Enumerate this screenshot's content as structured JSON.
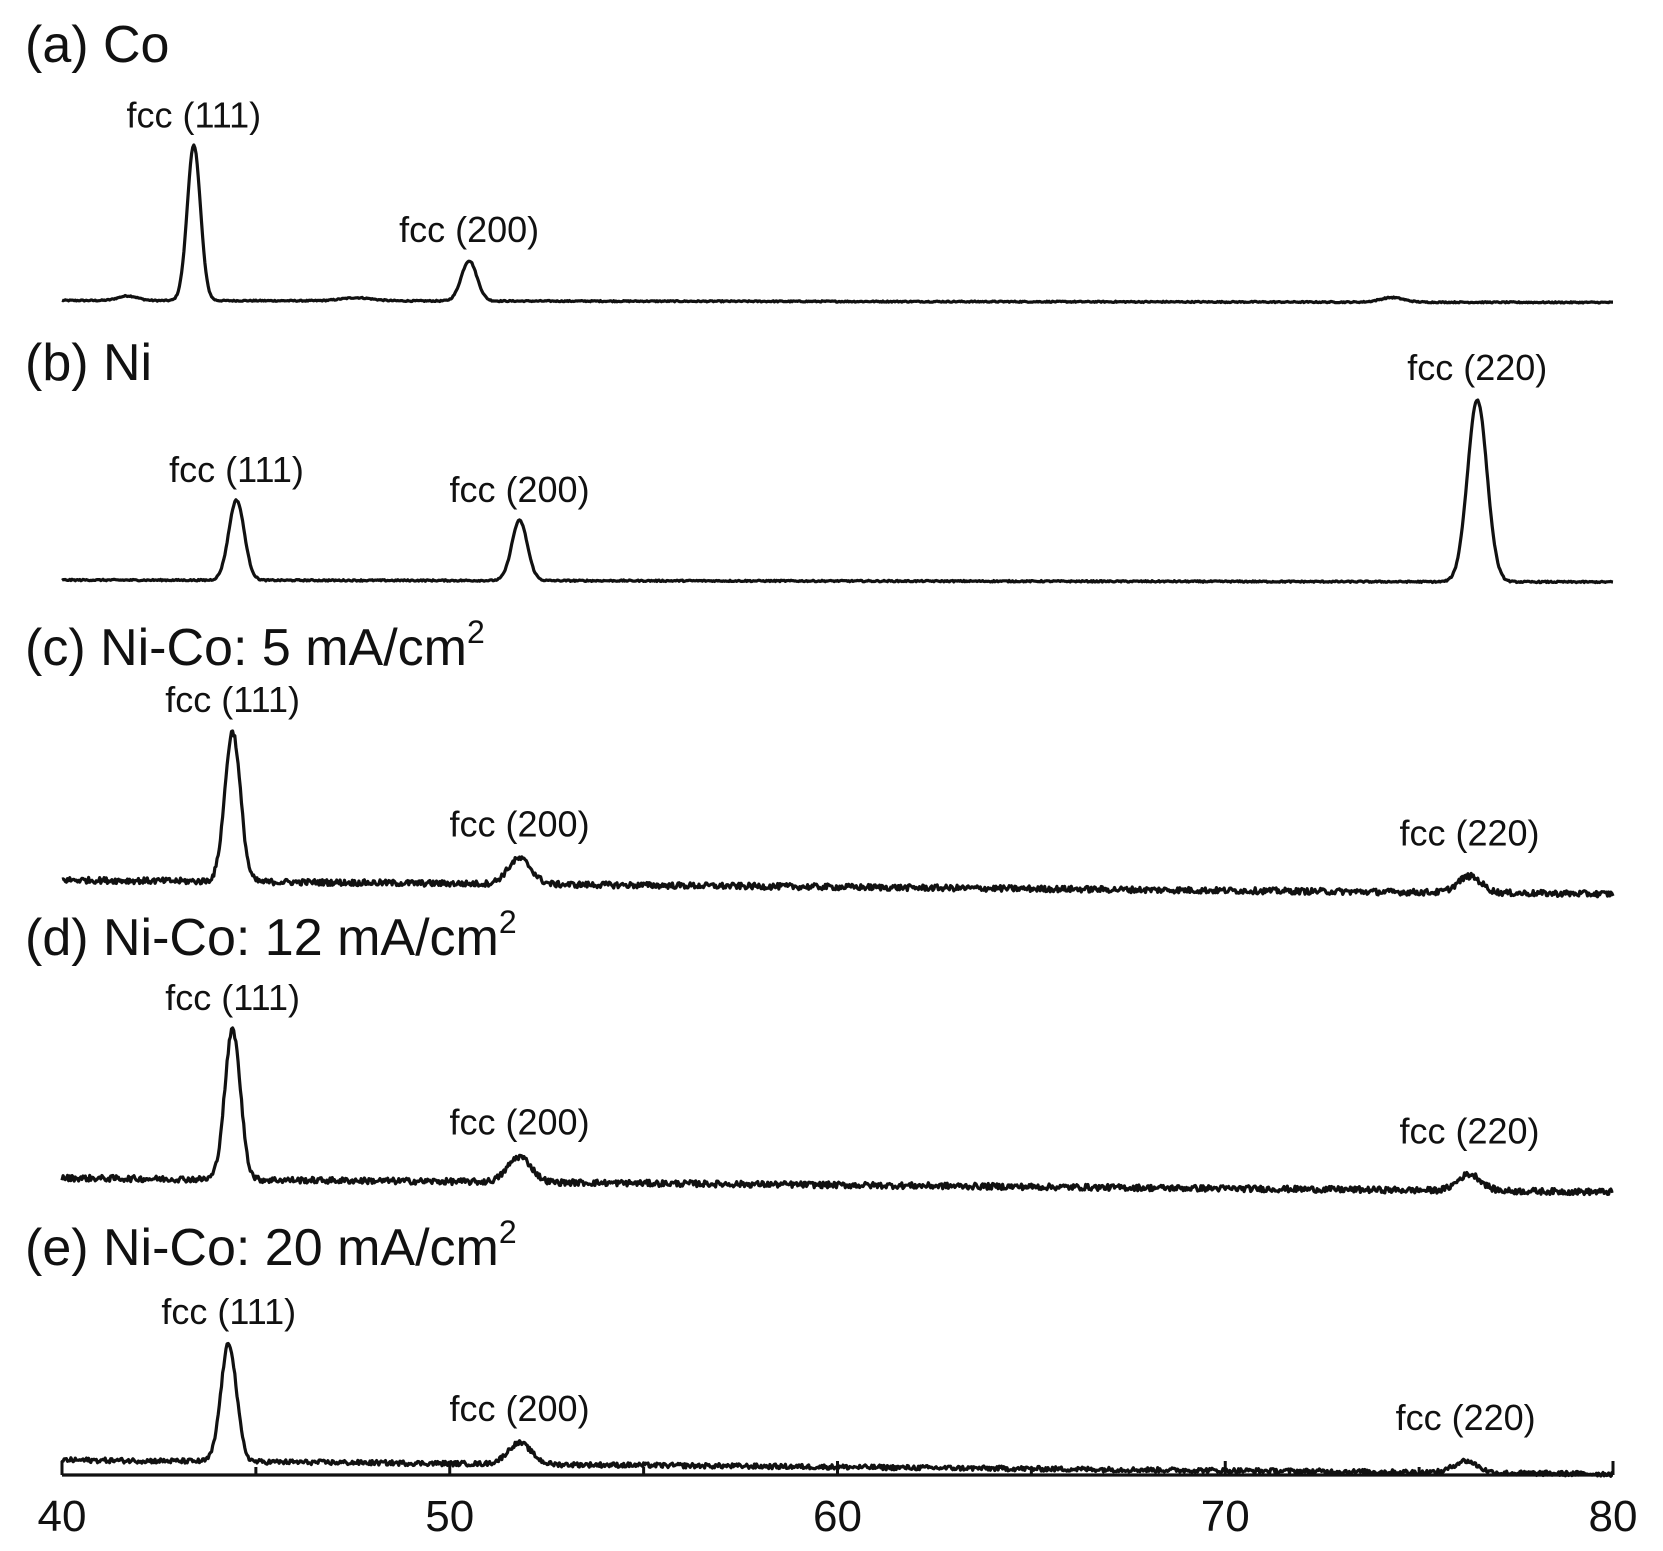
{
  "chart_data": {
    "type": "line",
    "xlim": [
      40,
      80
    ],
    "x_ticks": [
      40,
      50,
      60,
      70,
      80
    ],
    "x_tick_labels": [
      "40",
      "50",
      "60",
      "70",
      "80"
    ],
    "xlabel": "",
    "ylabel": "",
    "grid": false,
    "line_color": "#111111",
    "panels": [
      {
        "title": "(a) Co",
        "title_sup": "",
        "noise": 0.004,
        "baseline": 0.01,
        "peaks": [
          {
            "x": 41.7,
            "height": 0.03,
            "width": 0.25
          },
          {
            "x": 43.4,
            "height": 1.0,
            "width": 0.17
          },
          {
            "x": 47.6,
            "height": 0.02,
            "width": 0.4
          },
          {
            "x": 50.5,
            "height": 0.26,
            "width": 0.2
          },
          {
            "x": 74.3,
            "height": 0.03,
            "width": 0.3
          }
        ],
        "labels": [
          {
            "text": "fcc (111)",
            "x": 43.4
          },
          {
            "text": "fcc (200)",
            "x": 50.5
          }
        ]
      },
      {
        "title": "(b) Ni",
        "title_sup": "",
        "noise": 0.004,
        "baseline": 0.0,
        "peaks": [
          {
            "x": 44.5,
            "height": 0.44,
            "width": 0.2
          },
          {
            "x": 51.8,
            "height": 0.33,
            "width": 0.2
          },
          {
            "x": 76.5,
            "height": 1.0,
            "width": 0.25
          }
        ],
        "labels": [
          {
            "text": "fcc (111)",
            "x": 44.5
          },
          {
            "text": "fcc (200)",
            "x": 51.8
          },
          {
            "text": "fcc (220)",
            "x": 76.5
          }
        ]
      },
      {
        "title": "(c) Ni-Co: 5 mA/cm",
        "title_sup": "2",
        "noise": 0.02,
        "baseline": 0.0,
        "peaks": [
          {
            "x": 44.4,
            "height": 1.0,
            "width": 0.2
          },
          {
            "x": 51.8,
            "height": 0.17,
            "width": 0.3
          },
          {
            "x": 76.3,
            "height": 0.11,
            "width": 0.3
          }
        ],
        "labels": [
          {
            "text": "fcc (111)",
            "x": 44.4
          },
          {
            "text": "fcc (200)",
            "x": 51.8
          },
          {
            "text": "fcc (220)",
            "x": 76.3
          }
        ]
      },
      {
        "title": "(d) Ni-Co: 12 mA/cm",
        "title_sup": "2",
        "noise": 0.02,
        "baseline": 0.0,
        "peaks": [
          {
            "x": 44.4,
            "height": 1.0,
            "width": 0.2
          },
          {
            "x": 51.8,
            "height": 0.17,
            "width": 0.3
          },
          {
            "x": 76.3,
            "height": 0.11,
            "width": 0.3
          }
        ],
        "labels": [
          {
            "text": "fcc (111)",
            "x": 44.4
          },
          {
            "text": "fcc (200)",
            "x": 51.8
          },
          {
            "text": "fcc (220)",
            "x": 76.3
          }
        ]
      },
      {
        "title": "(e) Ni-Co: 20 mA/cm",
        "title_sup": "2",
        "noise": 0.02,
        "baseline": 0.0,
        "peaks": [
          {
            "x": 44.3,
            "height": 1.0,
            "width": 0.2
          },
          {
            "x": 51.8,
            "height": 0.18,
            "width": 0.3
          },
          {
            "x": 76.2,
            "height": 0.1,
            "width": 0.3
          }
        ],
        "labels": [
          {
            "text": "fcc (111)",
            "x": 44.3
          },
          {
            "text": "fcc (200)",
            "x": 51.8
          },
          {
            "text": "fcc (220)",
            "x": 76.2
          }
        ]
      }
    ]
  }
}
